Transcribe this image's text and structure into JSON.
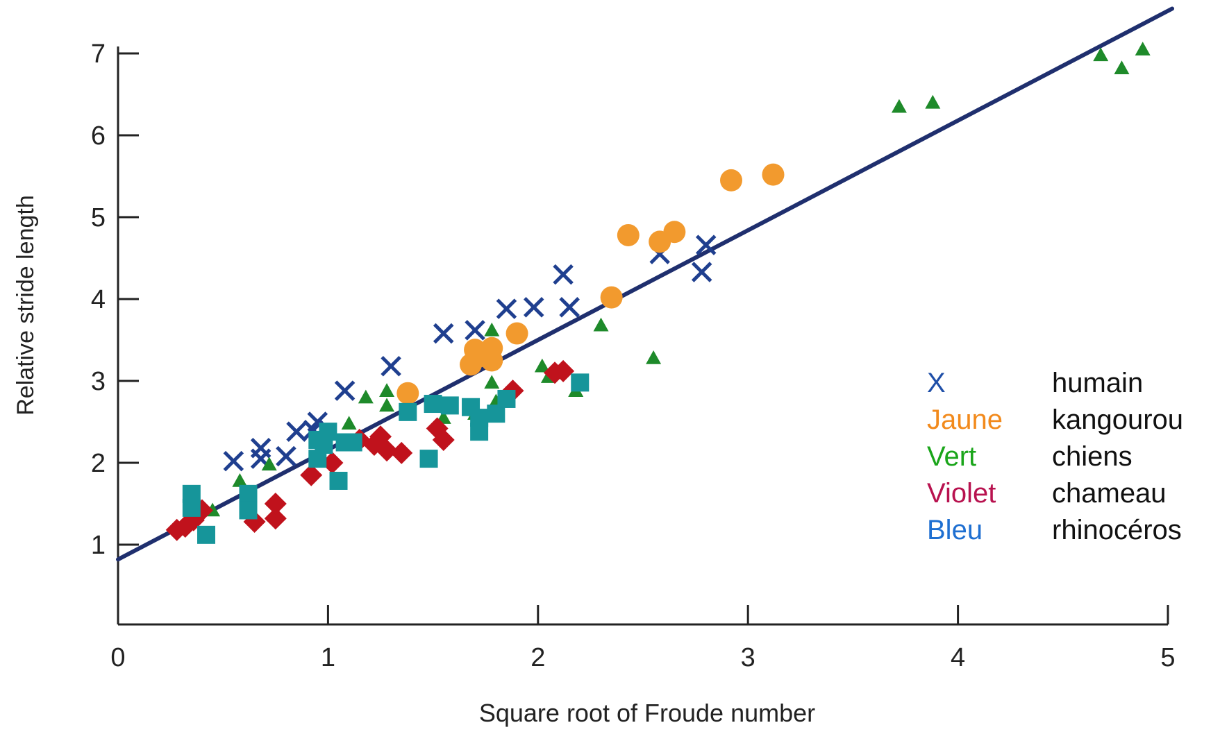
{
  "chart_data": {
    "type": "scatter",
    "xlabel": "Square root of Froude number",
    "ylabel": "Relative stride length",
    "xlim": [
      0,
      5
    ],
    "ylim": [
      0,
      7.5
    ],
    "x_ticks": [
      0,
      1,
      2,
      3,
      4,
      5
    ],
    "y_ticks": [
      1,
      2,
      3,
      4,
      5,
      6,
      7
    ],
    "x_tick_labels": [
      "0",
      "1",
      "2",
      "3",
      "4",
      "5"
    ],
    "y_tick_labels": [
      "1",
      "2",
      "3",
      "4",
      "5",
      "6",
      "7"
    ],
    "grid": false,
    "fit_line": {
      "intercept": 0.82,
      "slope": 1.34,
      "color": "#1f2f6e"
    },
    "legend": {
      "placement": "right",
      "entries": [
        {
          "key": "X",
          "label": "humain",
          "color": "#1f4fa8"
        },
        {
          "key": "Jaune",
          "label": "kangourou",
          "color": "#f28a1c"
        },
        {
          "key": "Vert",
          "label": "chiens",
          "color": "#1aa51a"
        },
        {
          "key": "Violet",
          "label": "chameau",
          "color": "#b8124f"
        },
        {
          "key": "Bleu",
          "label": "rhinocéros",
          "color": "#1e6fd1"
        }
      ]
    },
    "series": [
      {
        "marker": "x",
        "color": "#1f3f8f",
        "points": [
          [
            0.55,
            2.02
          ],
          [
            0.68,
            2.18
          ],
          [
            0.68,
            2.05
          ],
          [
            0.8,
            2.08
          ],
          [
            0.85,
            2.38
          ],
          [
            0.93,
            2.4
          ],
          [
            0.95,
            2.5
          ],
          [
            1.08,
            2.88
          ],
          [
            1.3,
            3.18
          ],
          [
            1.55,
            3.58
          ],
          [
            1.7,
            3.62
          ],
          [
            1.85,
            3.88
          ],
          [
            1.98,
            3.9
          ],
          [
            2.12,
            4.3
          ],
          [
            2.15,
            3.9
          ],
          [
            2.58,
            4.55
          ],
          [
            2.78,
            4.33
          ],
          [
            2.8,
            4.66
          ]
        ]
      },
      {
        "marker": "circle",
        "color": "#f29a2e",
        "points": [
          [
            1.38,
            2.85
          ],
          [
            1.68,
            3.2
          ],
          [
            1.7,
            3.38
          ],
          [
            1.72,
            3.3
          ],
          [
            1.78,
            3.4
          ],
          [
            1.78,
            3.25
          ],
          [
            1.9,
            3.58
          ],
          [
            2.35,
            4.02
          ],
          [
            2.43,
            4.78
          ],
          [
            2.58,
            4.7
          ],
          [
            2.65,
            4.82
          ],
          [
            2.92,
            5.45
          ],
          [
            3.12,
            5.52
          ]
        ]
      },
      {
        "marker": "triangle",
        "color": "#1e8a2a",
        "points": [
          [
            0.45,
            1.42
          ],
          [
            0.58,
            1.78
          ],
          [
            0.72,
            1.98
          ],
          [
            1.1,
            2.48
          ],
          [
            1.18,
            2.8
          ],
          [
            1.28,
            2.7
          ],
          [
            1.28,
            2.88
          ],
          [
            1.55,
            2.55
          ],
          [
            1.7,
            2.6
          ],
          [
            1.78,
            2.98
          ],
          [
            1.8,
            2.75
          ],
          [
            1.78,
            3.62
          ],
          [
            2.02,
            3.18
          ],
          [
            2.05,
            3.05
          ],
          [
            2.18,
            2.88
          ],
          [
            2.3,
            3.68
          ],
          [
            2.55,
            3.28
          ],
          [
            3.72,
            6.35
          ],
          [
            3.88,
            6.4
          ],
          [
            4.68,
            6.98
          ],
          [
            4.78,
            6.82
          ],
          [
            4.88,
            7.05
          ]
        ]
      },
      {
        "marker": "diamond",
        "color": "#c0121c",
        "points": [
          [
            0.28,
            1.18
          ],
          [
            0.32,
            1.22
          ],
          [
            0.36,
            1.3
          ],
          [
            0.38,
            1.38
          ],
          [
            0.4,
            1.42
          ],
          [
            0.65,
            1.28
          ],
          [
            0.75,
            1.32
          ],
          [
            0.75,
            1.5
          ],
          [
            0.92,
            1.85
          ],
          [
            1.02,
            2.0
          ],
          [
            1.15,
            2.28
          ],
          [
            1.22,
            2.22
          ],
          [
            1.25,
            2.32
          ],
          [
            1.28,
            2.15
          ],
          [
            1.35,
            2.12
          ],
          [
            1.52,
            2.42
          ],
          [
            1.55,
            2.28
          ],
          [
            1.88,
            2.88
          ],
          [
            2.08,
            3.1
          ],
          [
            2.12,
            3.12
          ]
        ]
      },
      {
        "marker": "square",
        "color": "#16959a",
        "points": [
          [
            0.35,
            1.62
          ],
          [
            0.35,
            1.45
          ],
          [
            0.42,
            1.12
          ],
          [
            0.62,
            1.62
          ],
          [
            0.62,
            1.42
          ],
          [
            0.95,
            2.28
          ],
          [
            0.95,
            2.05
          ],
          [
            0.98,
            2.22
          ],
          [
            1.0,
            2.38
          ],
          [
            1.05,
            1.78
          ],
          [
            1.08,
            2.25
          ],
          [
            1.12,
            2.25
          ],
          [
            1.38,
            2.62
          ],
          [
            1.48,
            2.05
          ],
          [
            1.5,
            2.72
          ],
          [
            1.58,
            2.7
          ],
          [
            1.68,
            2.68
          ],
          [
            1.72,
            2.55
          ],
          [
            1.72,
            2.38
          ],
          [
            1.8,
            2.6
          ],
          [
            1.85,
            2.78
          ],
          [
            2.2,
            2.98
          ]
        ]
      }
    ]
  }
}
